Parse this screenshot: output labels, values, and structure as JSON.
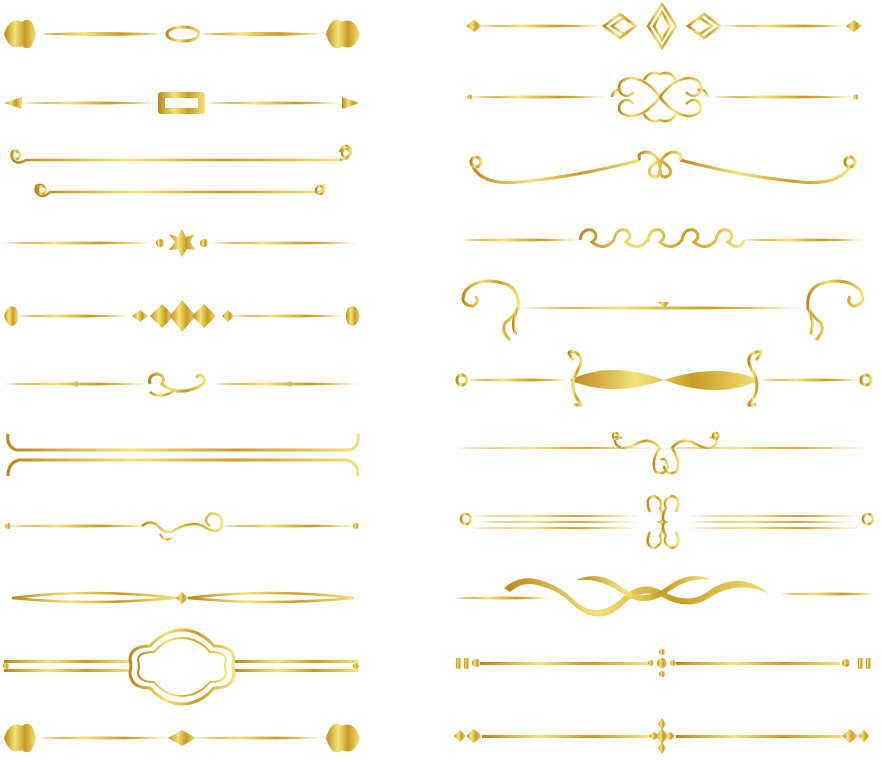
{
  "title": "",
  "palette": {
    "gold_dark": "#b8861b",
    "gold_mid": "#d9b53a",
    "gold_light": "#f3e27a",
    "background": "#ffffff"
  },
  "ornament_sets": [
    {
      "column": "left",
      "items": [
        "tulip-end-oval-center-divider",
        "arrow-end-rectangle-center-divider",
        "double-line-spiral-end-divider",
        "star-burst-center-divider",
        "diamond-cluster-tulip-end-divider",
        "s-scroll-center-divider",
        "bracket-double-line-divider",
        "swirl-flourish-divider",
        "lens-shaped-divider",
        "cartouche-frame-divider",
        "tulip-end-diamond-center-divider"
      ]
    },
    {
      "column": "right",
      "items": [
        "diamond-lattice-center-divider",
        "heart-scroll-center-divider",
        "loop-wave-divider",
        "wave-scroll-row-divider",
        "large-curl-bracket-divider",
        "figure-eight-ribbon-divider",
        "hanging-scroll-divider",
        "triple-line-scroll-divider",
        "ribbon-weave-divider",
        "dot-cross-divider",
        "diamond-cross-divider"
      ]
    }
  ]
}
